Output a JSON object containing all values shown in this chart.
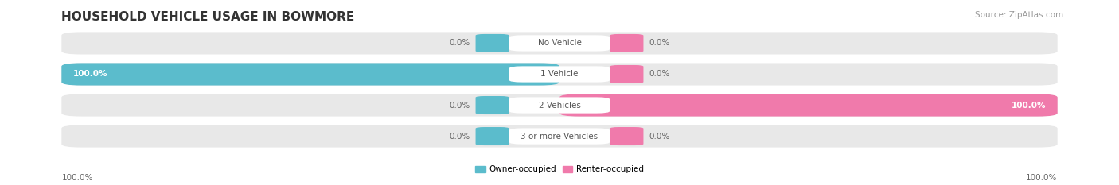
{
  "title": "HOUSEHOLD VEHICLE USAGE IN BOWMORE",
  "source": "Source: ZipAtlas.com",
  "categories": [
    "No Vehicle",
    "1 Vehicle",
    "2 Vehicles",
    "3 or more Vehicles"
  ],
  "owner_values": [
    0.0,
    100.0,
    0.0,
    0.0
  ],
  "renter_values": [
    0.0,
    0.0,
    100.0,
    0.0
  ],
  "owner_color": "#5bbccc",
  "renter_color": "#f07aab",
  "bar_bg_color": "#e8e8e8",
  "figsize": [
    14.06,
    2.33
  ],
  "dpi": 100,
  "title_fontsize": 11,
  "label_fontsize": 7.5,
  "source_fontsize": 7.5,
  "value_color_on_bar": "#ffffff",
  "value_color_off_bar": "#666666"
}
